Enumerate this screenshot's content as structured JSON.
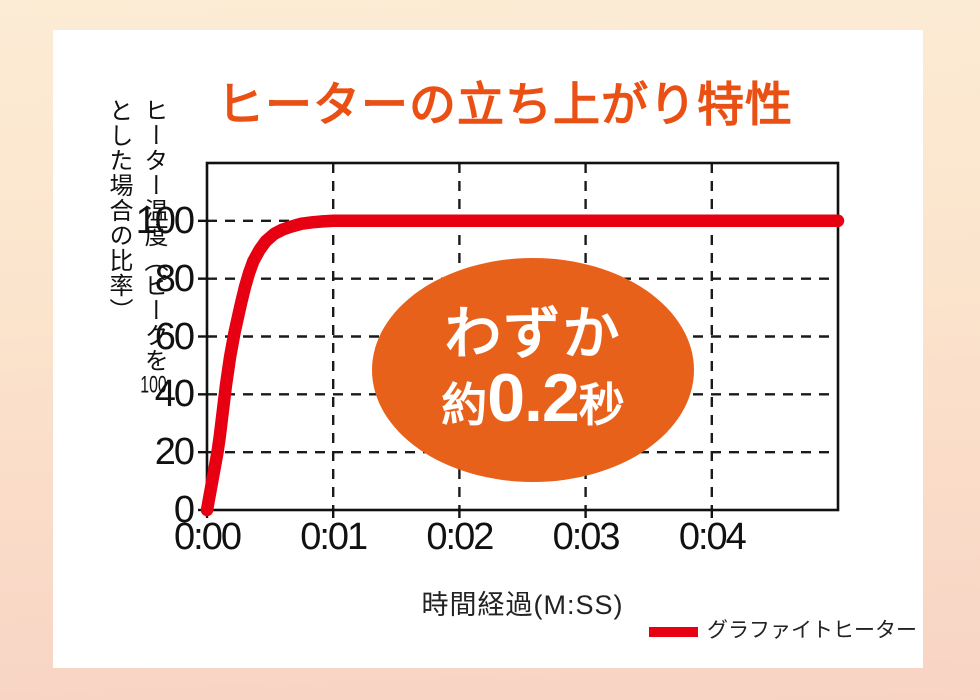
{
  "page": {
    "background_top": "#fcecd5",
    "background_bottom": "#f8d3c4",
    "card_bg": "#ffffff"
  },
  "title": {
    "text": "ヒーターの立ち上がり特性",
    "color": "#ea5014"
  },
  "axis": {
    "y_label_pre": "ヒーター温度（ピークを",
    "y_label_num": "100",
    "y_label_post": "とした場合の比率）",
    "x_label": "時間経過(M:SS)"
  },
  "badge": {
    "line1": "わずか",
    "line2_prefix": "約",
    "line2_value": "0.2",
    "line2_suffix": "秒",
    "bg_color": "#e8611a",
    "text_color": "#ffffff"
  },
  "legend": {
    "label": "グラファイトヒーター",
    "swatch_color": "#e60012"
  },
  "chart_data": {
    "type": "line",
    "title": "ヒーターの立ち上がり特性",
    "xlabel": "時間経過(M:SS)",
    "ylabel": "ヒーター温度（ピークを100とした場合の比率）",
    "x_ticks": [
      {
        "label": "0:00",
        "t": 0
      },
      {
        "label": "0:01",
        "t": 60
      },
      {
        "label": "0:02",
        "t": 120
      },
      {
        "label": "0:03",
        "t": 180
      },
      {
        "label": "0:04",
        "t": 240
      }
    ],
    "xlim_seconds": [
      0,
      300
    ],
    "y_ticks": [
      0,
      20,
      40,
      60,
      80,
      100
    ],
    "ylim": [
      0,
      120
    ],
    "grid": "dashed",
    "legend_position": "bottom-right",
    "annotation": "わずか約0.2秒",
    "series": [
      {
        "name": "グラファイトヒーター",
        "color": "#e60012",
        "points": [
          [
            0,
            0
          ],
          [
            1,
            4
          ],
          [
            2,
            8
          ],
          [
            3,
            12
          ],
          [
            4,
            16
          ],
          [
            5,
            20
          ],
          [
            6,
            25
          ],
          [
            7,
            31
          ],
          [
            8,
            37
          ],
          [
            9,
            43
          ],
          [
            10,
            48
          ],
          [
            11,
            53
          ],
          [
            12,
            57
          ],
          [
            13,
            61
          ],
          [
            14.5,
            66
          ],
          [
            16,
            71
          ],
          [
            18,
            77
          ],
          [
            20,
            82
          ],
          [
            22,
            86
          ],
          [
            25,
            90
          ],
          [
            28,
            93
          ],
          [
            32,
            95.5
          ],
          [
            36,
            97
          ],
          [
            40,
            98
          ],
          [
            45,
            99
          ],
          [
            50,
            99.5
          ],
          [
            55,
            99.8
          ],
          [
            60,
            100
          ],
          [
            120,
            100
          ],
          [
            180,
            100
          ],
          [
            240,
            100
          ],
          [
            300,
            100
          ]
        ]
      }
    ]
  }
}
